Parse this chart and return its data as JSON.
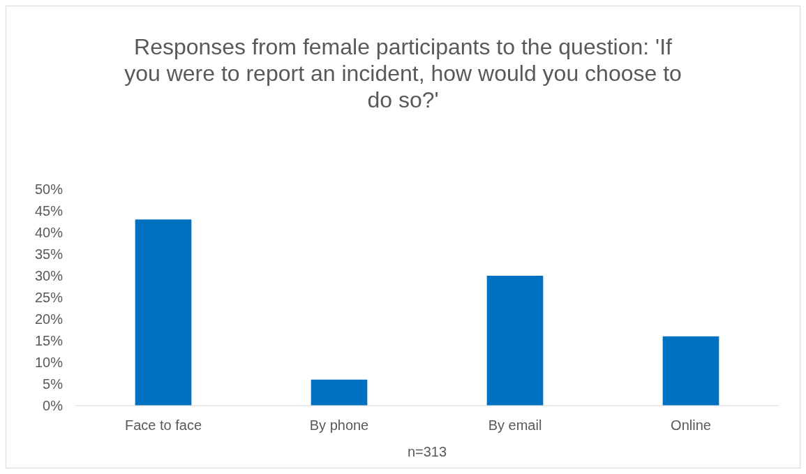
{
  "chart_data": {
    "type": "bar",
    "title": "Responses from female participants to the question: 'If you were to report an incident, how would you choose to do so?'",
    "xlabel": "n=313",
    "categories": [
      "Face to face",
      "By phone",
      "By email",
      "Online"
    ],
    "values": [
      43,
      6,
      30,
      16
    ],
    "color": "#0070c0",
    "ylim": [
      0,
      50
    ],
    "yticks": [
      {
        "value": 0,
        "label": "0%"
      },
      {
        "value": 5,
        "label": "5%"
      },
      {
        "value": 10,
        "label": "10%"
      },
      {
        "value": 15,
        "label": "15%"
      },
      {
        "value": 20,
        "label": "20%"
      },
      {
        "value": 25,
        "label": "25%"
      },
      {
        "value": 30,
        "label": "30%"
      },
      {
        "value": 35,
        "label": "35%"
      },
      {
        "value": 40,
        "label": "40%"
      },
      {
        "value": 45,
        "label": "45%"
      },
      {
        "value": 50,
        "label": "50%"
      }
    ],
    "grid": false
  }
}
